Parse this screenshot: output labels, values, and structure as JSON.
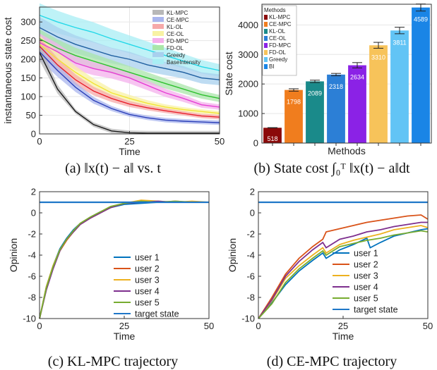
{
  "captions": {
    "a": "(a) ‖x(t) − a‖ vs. t",
    "b": "(b) State cost ∫₀ᵀ ‖x(t) − a‖dt",
    "c": "(c) KL-MPC trajectory",
    "d": "(d) CE-MPC trajectory"
  },
  "chart_data": [
    {
      "id": "a",
      "type": "line",
      "xlabel": "Time",
      "ylabel": "instantaneous state cost",
      "xlim": [
        0,
        50
      ],
      "ylim": [
        0,
        340
      ],
      "xticks": [
        0,
        25,
        50
      ],
      "yticks": [
        0,
        50,
        100,
        150,
        200,
        250,
        300
      ],
      "grid": true,
      "legend_position": "top-right",
      "series": [
        {
          "name": "KL-MPC",
          "color": "#1a1a1a",
          "band_color": "#b8b8b8",
          "x": [
            0,
            5,
            10,
            15,
            20,
            25,
            30,
            35,
            40,
            45,
            50
          ],
          "y": [
            218,
            120,
            60,
            25,
            8,
            3,
            2,
            2,
            2,
            2,
            2
          ]
        },
        {
          "name": "CE-MPC",
          "color": "#2b3fb8",
          "band_color": "#aab6ee",
          "x": [
            0,
            5,
            10,
            15,
            20,
            25,
            30,
            35,
            40,
            45,
            50
          ],
          "y": [
            220,
            170,
            125,
            90,
            68,
            52,
            43,
            37,
            34,
            32,
            30
          ]
        },
        {
          "name": "KL-OL",
          "color": "#e8202a",
          "band_color": "#f6a9a9",
          "x": [
            0,
            5,
            10,
            15,
            20,
            25,
            30,
            35,
            40,
            45,
            50
          ],
          "y": [
            235,
            185,
            145,
            115,
            95,
            80,
            70,
            62,
            55,
            48,
            45
          ]
        },
        {
          "name": "CE-OL",
          "color": "#f2e437",
          "band_color": "#f8f2a4",
          "x": [
            0,
            5,
            10,
            15,
            20,
            25,
            30,
            35,
            40,
            45,
            50
          ],
          "y": [
            240,
            200,
            165,
            135,
            110,
            95,
            82,
            72,
            65,
            60,
            55
          ]
        },
        {
          "name": "FD-MPC",
          "color": "#e63ed4",
          "band_color": "#f4b0ec",
          "x": [
            0,
            5,
            10,
            15,
            20,
            25,
            30,
            35,
            40,
            45,
            50
          ],
          "y": [
            245,
            220,
            190,
            175,
            165,
            150,
            130,
            110,
            95,
            78,
            72
          ]
        },
        {
          "name": "FD-OL",
          "color": "#2ec02e",
          "band_color": "#a9e6a9",
          "x": [
            0,
            5,
            10,
            15,
            20,
            25,
            30,
            35,
            40,
            45,
            50
          ],
          "y": [
            255,
            230,
            210,
            195,
            180,
            165,
            150,
            135,
            120,
            105,
            95
          ]
        },
        {
          "name": "Greedy",
          "color": "#1f5fa0",
          "band_color": "#a8d0ee",
          "x": [
            0,
            5,
            10,
            15,
            20,
            25,
            30,
            35,
            40,
            45,
            50
          ],
          "y": [
            285,
            260,
            240,
            225,
            210,
            200,
            185,
            175,
            165,
            150,
            145
          ]
        },
        {
          "name": "BaseIntensity",
          "color": "#22d8e8",
          "band_color": "#a8eef4",
          "x": [
            0,
            5,
            10,
            15,
            20,
            25,
            30,
            35,
            40,
            45,
            50
          ],
          "y": [
            318,
            300,
            285,
            272,
            255,
            240,
            225,
            210,
            195,
            180,
            170
          ]
        }
      ]
    },
    {
      "id": "b",
      "type": "bar",
      "xlabel": "Methods",
      "ylabel": "State cost",
      "ylim": [
        0,
        4700
      ],
      "yticks": [
        0,
        1000,
        2000,
        3000,
        4000
      ],
      "grid": true,
      "legend_title": "Methods",
      "legend_position": "top-left",
      "categories": [
        "KL-MPC",
        "CE-MPC",
        "KL-OL",
        "CE-OL",
        "FD-MPC",
        "FD-OL",
        "Greedy",
        "BI"
      ],
      "values": [
        518,
        1798,
        2089,
        2318,
        2634,
        3310,
        3811,
        4589
      ],
      "errors": [
        5,
        40,
        40,
        40,
        90,
        100,
        110,
        120
      ],
      "colors": [
        "#8b0a0a",
        "#f07d1e",
        "#1a8a8a",
        "#2c7fd6",
        "#8b22e6",
        "#f7c35a",
        "#62c4f5",
        "#1a85e6"
      ]
    },
    {
      "id": "c",
      "type": "line",
      "xlabel": "Time",
      "ylabel": "Opinion",
      "xlim": [
        0,
        50
      ],
      "ylim": [
        -10,
        2
      ],
      "xticks": [
        0,
        25,
        50
      ],
      "yticks": [
        -10,
        -8,
        -6,
        -4,
        -2,
        0,
        2
      ],
      "legend_position": "bottom-right",
      "series": [
        {
          "name": "user 1",
          "color": "#0072bd",
          "x": [
            0,
            2,
            4,
            6,
            8,
            10,
            12,
            15,
            18,
            21,
            25,
            30,
            35,
            40,
            45,
            50
          ],
          "y": [
            -10,
            -7,
            -5,
            -3.4,
            -2.4,
            -1.6,
            -1.0,
            -0.4,
            0.1,
            0.5,
            0.8,
            0.9,
            1.0,
            1.0,
            1.0,
            1.0
          ]
        },
        {
          "name": "user 2",
          "color": "#d95319",
          "x": [
            0,
            2,
            4,
            6,
            8,
            10,
            12,
            15,
            18,
            21,
            25,
            30,
            35,
            40,
            45,
            50
          ],
          "y": [
            -10,
            -7.2,
            -5.2,
            -3.6,
            -2.6,
            -1.8,
            -1.1,
            -0.5,
            0.0,
            0.5,
            0.9,
            1.1,
            1.0,
            1.1,
            1.0,
            1.0
          ]
        },
        {
          "name": "user 3",
          "color": "#edb120",
          "x": [
            0,
            2,
            4,
            6,
            8,
            10,
            12,
            15,
            18,
            21,
            25,
            30,
            35,
            40,
            45,
            50
          ],
          "y": [
            -10,
            -7.0,
            -5.0,
            -3.5,
            -2.5,
            -1.7,
            -1.0,
            -0.4,
            0.1,
            0.6,
            0.9,
            1.2,
            1.1,
            1.0,
            1.1,
            1.0
          ]
        },
        {
          "name": "user 4",
          "color": "#7e2f8e",
          "x": [
            0,
            2,
            4,
            6,
            7,
            8,
            10,
            12,
            15,
            18,
            21,
            25,
            30,
            35,
            40,
            45,
            50
          ],
          "y": [
            -10,
            -7.3,
            -5.3,
            -3.6,
            -3.0,
            -2.5,
            -1.8,
            -1.1,
            -0.5,
            0.0,
            0.5,
            0.9,
            1.0,
            1.1,
            1.0,
            1.0,
            1.0
          ]
        },
        {
          "name": "user 5",
          "color": "#77ac30",
          "x": [
            0,
            2,
            4,
            6,
            8,
            10,
            12,
            15,
            18,
            21,
            25,
            30,
            35,
            40,
            45,
            50
          ],
          "y": [
            -10,
            -7.1,
            -5.1,
            -3.5,
            -2.5,
            -1.7,
            -1.0,
            -0.4,
            0.1,
            0.6,
            0.9,
            1.1,
            1.0,
            1.1,
            1.0,
            1.0
          ]
        },
        {
          "name": "target state",
          "color": "#1f77c8",
          "x": [
            0,
            50
          ],
          "y": [
            1.0,
            1.0
          ]
        }
      ]
    },
    {
      "id": "d",
      "type": "line",
      "xlabel": "Time",
      "ylabel": "Opinion",
      "xlim": [
        0,
        50
      ],
      "ylim": [
        -10,
        2
      ],
      "xticks": [
        0,
        25,
        50
      ],
      "yticks": [
        -10,
        -8,
        -6,
        -4,
        -2,
        0,
        2
      ],
      "legend_position": "bottom-right",
      "series": [
        {
          "name": "user 1",
          "color": "#0072bd",
          "x": [
            0,
            4,
            8,
            12,
            16,
            19,
            20,
            24,
            28,
            32,
            33,
            36,
            40,
            44,
            48,
            50
          ],
          "y": [
            -10,
            -8.5,
            -6.8,
            -5.5,
            -4.5,
            -3.8,
            -4.3,
            -3.5,
            -3.0,
            -2.4,
            -3.3,
            -2.8,
            -2.2,
            -1.9,
            -1.6,
            -1.5
          ]
        },
        {
          "name": "user 2",
          "color": "#d95319",
          "x": [
            0,
            4,
            8,
            12,
            16,
            19,
            20,
            24,
            28,
            32,
            36,
            40,
            44,
            48,
            50
          ],
          "y": [
            -10,
            -8.0,
            -5.8,
            -4.3,
            -3.2,
            -2.5,
            -1.8,
            -1.5,
            -1.2,
            -0.9,
            -0.7,
            -0.5,
            -0.3,
            -0.2,
            -0.6
          ]
        },
        {
          "name": "user 3",
          "color": "#edb120",
          "x": [
            0,
            4,
            8,
            12,
            16,
            19,
            20,
            24,
            28,
            32,
            36,
            40,
            44,
            48,
            50
          ],
          "y": [
            -10,
            -8.3,
            -6.2,
            -5.0,
            -4.0,
            -3.3,
            -3.8,
            -3.0,
            -2.6,
            -2.3,
            -2.0,
            -1.6,
            -1.4,
            -1.2,
            -1.4
          ]
        },
        {
          "name": "user 4",
          "color": "#7e2f8e",
          "x": [
            0,
            4,
            8,
            12,
            16,
            19,
            20,
            24,
            28,
            32,
            36,
            40,
            44,
            48,
            50
          ],
          "y": [
            -10,
            -8.2,
            -6.0,
            -4.6,
            -3.5,
            -2.8,
            -3.3,
            -2.5,
            -2.2,
            -1.8,
            -1.6,
            -1.3,
            -1.1,
            -0.9,
            -0.9
          ]
        },
        {
          "name": "user 5",
          "color": "#77ac30",
          "x": [
            0,
            4,
            8,
            12,
            16,
            19,
            20,
            24,
            28,
            32,
            36,
            40,
            44,
            48,
            50
          ],
          "y": [
            -10,
            -8.6,
            -6.6,
            -5.3,
            -4.3,
            -3.6,
            -4.0,
            -3.2,
            -2.9,
            -2.6,
            -2.4,
            -2.1,
            -1.9,
            -1.7,
            -1.8
          ]
        },
        {
          "name": "target state",
          "color": "#1f77c8",
          "x": [
            0,
            50
          ],
          "y": [
            1.0,
            1.0
          ]
        }
      ]
    }
  ]
}
